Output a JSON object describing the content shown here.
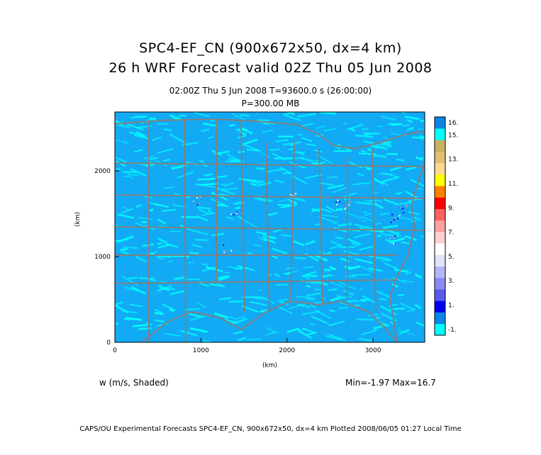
{
  "title_line1": "SPC4-EF_CN (900x672x50, dx=4 km)",
  "title_line2": "26 h WRF Forecast valid 02Z Thu 05 Jun 2008",
  "subtitle_time": "02:00Z Thu  5 Jun 2008     T=93600.0 s (26:00:00)",
  "subtitle_level": "P=300.00 MB",
  "variable_label": "w (m/s, Shaded)",
  "minmax_label": "Min=-1.97 Max=16.7",
  "footer": "CAPS/OU Experimental Forecasts  SPC4-EF_CN, 900x672x50, dx=4 km  Plotted 2008/06/05 01:27 Local Time",
  "chart_data": {
    "type": "heatmap",
    "title": "SPC4-EF_CN (900x672x50, dx=4 km) 26 h WRF Forecast valid 02Z Thu 05 Jun 2008",
    "xlabel": "(km)",
    "ylabel": "(km)",
    "xlim": [
      0,
      3600
    ],
    "ylim": [
      0,
      2688
    ],
    "x_ticks": [
      "0",
      "1000",
      "2000",
      "3000"
    ],
    "x_tick_values": [
      0,
      1000,
      2000,
      3000
    ],
    "y_ticks": [
      "0",
      "1000",
      "2000"
    ],
    "y_tick_values": [
      0,
      1000,
      2000
    ],
    "field": "w (m/s)",
    "min": -1.97,
    "max": 16.7,
    "colorbar": {
      "labels": [
        "16.",
        "15.",
        "13.",
        "11.",
        "9.",
        "7.",
        "5.",
        "3.",
        "1.",
        "-1."
      ],
      "label_values": [
        16,
        15,
        13,
        11,
        9,
        7,
        5,
        3,
        1,
        -1
      ],
      "levels": [
        -1,
        0,
        1,
        2,
        3,
        4,
        5,
        6,
        7,
        8,
        9,
        10,
        11,
        12,
        13,
        14,
        15,
        16
      ],
      "colors": [
        "#00ffff",
        "#0a86e6",
        "#0000f0",
        "#5a5af0",
        "#8a8af5",
        "#b6b6f8",
        "#e2e2fb",
        "#ffffff",
        "#ffd0d0",
        "#ffa0a0",
        "#ff6060",
        "#ff0000",
        "#ff7f00",
        "#ffff00",
        "#ffd890",
        "#e0c070",
        "#c8b260",
        "#00ffff",
        "#0a86e6"
      ]
    },
    "background_color": "#12aaf5",
    "map_line_color": "#808080"
  }
}
